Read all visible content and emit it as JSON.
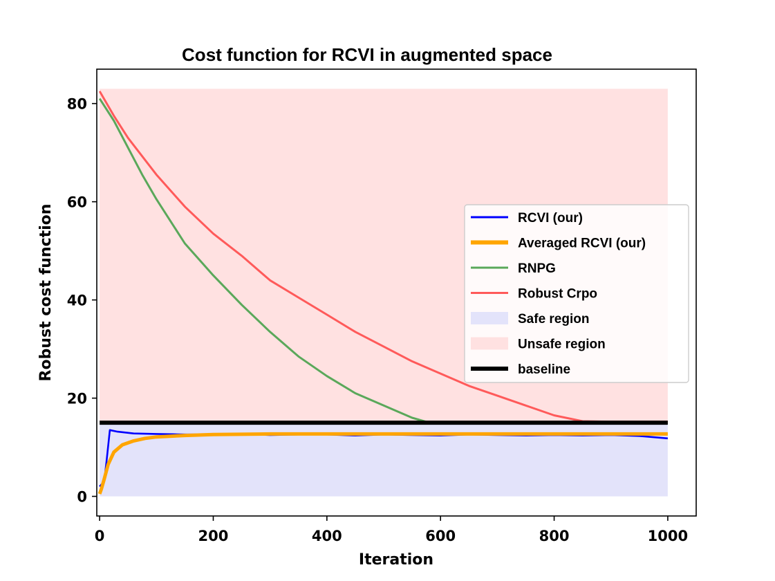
{
  "chart_data": {
    "type": "line",
    "title": "Cost function for RCVI in augmented space",
    "xlabel": "Iteration",
    "ylabel": "Robust cost function",
    "xlim": [
      -5,
      1050
    ],
    "ylim": [
      -4,
      87
    ],
    "xticks": [
      0,
      200,
      400,
      600,
      800,
      1000
    ],
    "yticks": [
      0,
      20,
      40,
      60,
      80
    ],
    "legend_position": "center-right",
    "series": [
      {
        "name": "RCVI (our)",
        "color": "#0000ff",
        "x": [
          0,
          8,
          12,
          18,
          30,
          60,
          100,
          150,
          200,
          250,
          300,
          350,
          400,
          450,
          500,
          550,
          600,
          650,
          700,
          750,
          800,
          850,
          900,
          950,
          1000
        ],
        "y": [
          2,
          3,
          7,
          13.5,
          13.2,
          12.8,
          12.7,
          12.6,
          12.6,
          12.7,
          12.5,
          12.6,
          12.6,
          12.4,
          12.6,
          12.5,
          12.4,
          12.6,
          12.5,
          12.4,
          12.5,
          12.4,
          12.5,
          12.3,
          11.8
        ]
      },
      {
        "name": "Averaged RCVI (our)",
        "color": "#ffa500",
        "x": [
          0,
          3,
          8,
          15,
          25,
          40,
          60,
          80,
          100,
          150,
          200,
          300,
          400,
          500,
          600,
          700,
          800,
          900,
          1000
        ],
        "y": [
          0.5,
          1.5,
          3.5,
          6.5,
          9,
          10.5,
          11.3,
          11.8,
          12.1,
          12.4,
          12.6,
          12.7,
          12.7,
          12.7,
          12.7,
          12.7,
          12.7,
          12.7,
          12.7
        ]
      },
      {
        "name": "RNPG",
        "color": "#5aa85a",
        "x": [
          0,
          25,
          50,
          75,
          100,
          150,
          200,
          250,
          300,
          350,
          400,
          450,
          500,
          550,
          580,
          600,
          700,
          800,
          900,
          1000
        ],
        "y": [
          81,
          76.5,
          71,
          65.5,
          60.5,
          51.5,
          45,
          39,
          33.5,
          28.5,
          24.5,
          21,
          18.5,
          16,
          15,
          15,
          15,
          15,
          15,
          15
        ]
      },
      {
        "name": "Robust Crpo",
        "color": "#ff5a5a",
        "x": [
          0,
          25,
          50,
          100,
          150,
          200,
          250,
          300,
          350,
          400,
          450,
          500,
          550,
          600,
          650,
          700,
          750,
          800,
          850,
          900,
          950,
          1000
        ],
        "y": [
          82.5,
          77.5,
          73,
          65.5,
          59,
          53.5,
          49,
          44,
          40.5,
          37,
          33.5,
          30.5,
          27.5,
          25,
          22.5,
          20.5,
          18.5,
          16.5,
          15.3,
          15.2,
          15.2,
          15.2
        ]
      },
      {
        "name": "baseline",
        "color": "#000000",
        "x": [
          0,
          1000
        ],
        "y": [
          15,
          15
        ]
      }
    ],
    "regions": [
      {
        "name": "Safe region",
        "color": "#e3e3fa",
        "x": [
          0,
          1000
        ],
        "y": [
          0,
          15
        ]
      },
      {
        "name": "Unsafe region",
        "color": "#ffe1e1",
        "x": [
          0,
          1000
        ],
        "y": [
          15,
          83
        ]
      }
    ],
    "legend": [
      {
        "label": "RCVI (our)",
        "kind": "line",
        "color": "#0000ff",
        "width": 3
      },
      {
        "label": "Averaged RCVI (our)",
        "kind": "line",
        "color": "#ffa500",
        "width": 6
      },
      {
        "label": "RNPG",
        "kind": "line",
        "color": "#5aa85a",
        "width": 3
      },
      {
        "label": "Robust Crpo",
        "kind": "line",
        "color": "#ff5a5a",
        "width": 3
      },
      {
        "label": "Safe region",
        "kind": "patch",
        "color": "#e3e3fa"
      },
      {
        "label": "Unsafe region",
        "kind": "patch",
        "color": "#ffe1e1"
      },
      {
        "label": "baseline",
        "kind": "line",
        "color": "#000000",
        "width": 6
      }
    ]
  }
}
